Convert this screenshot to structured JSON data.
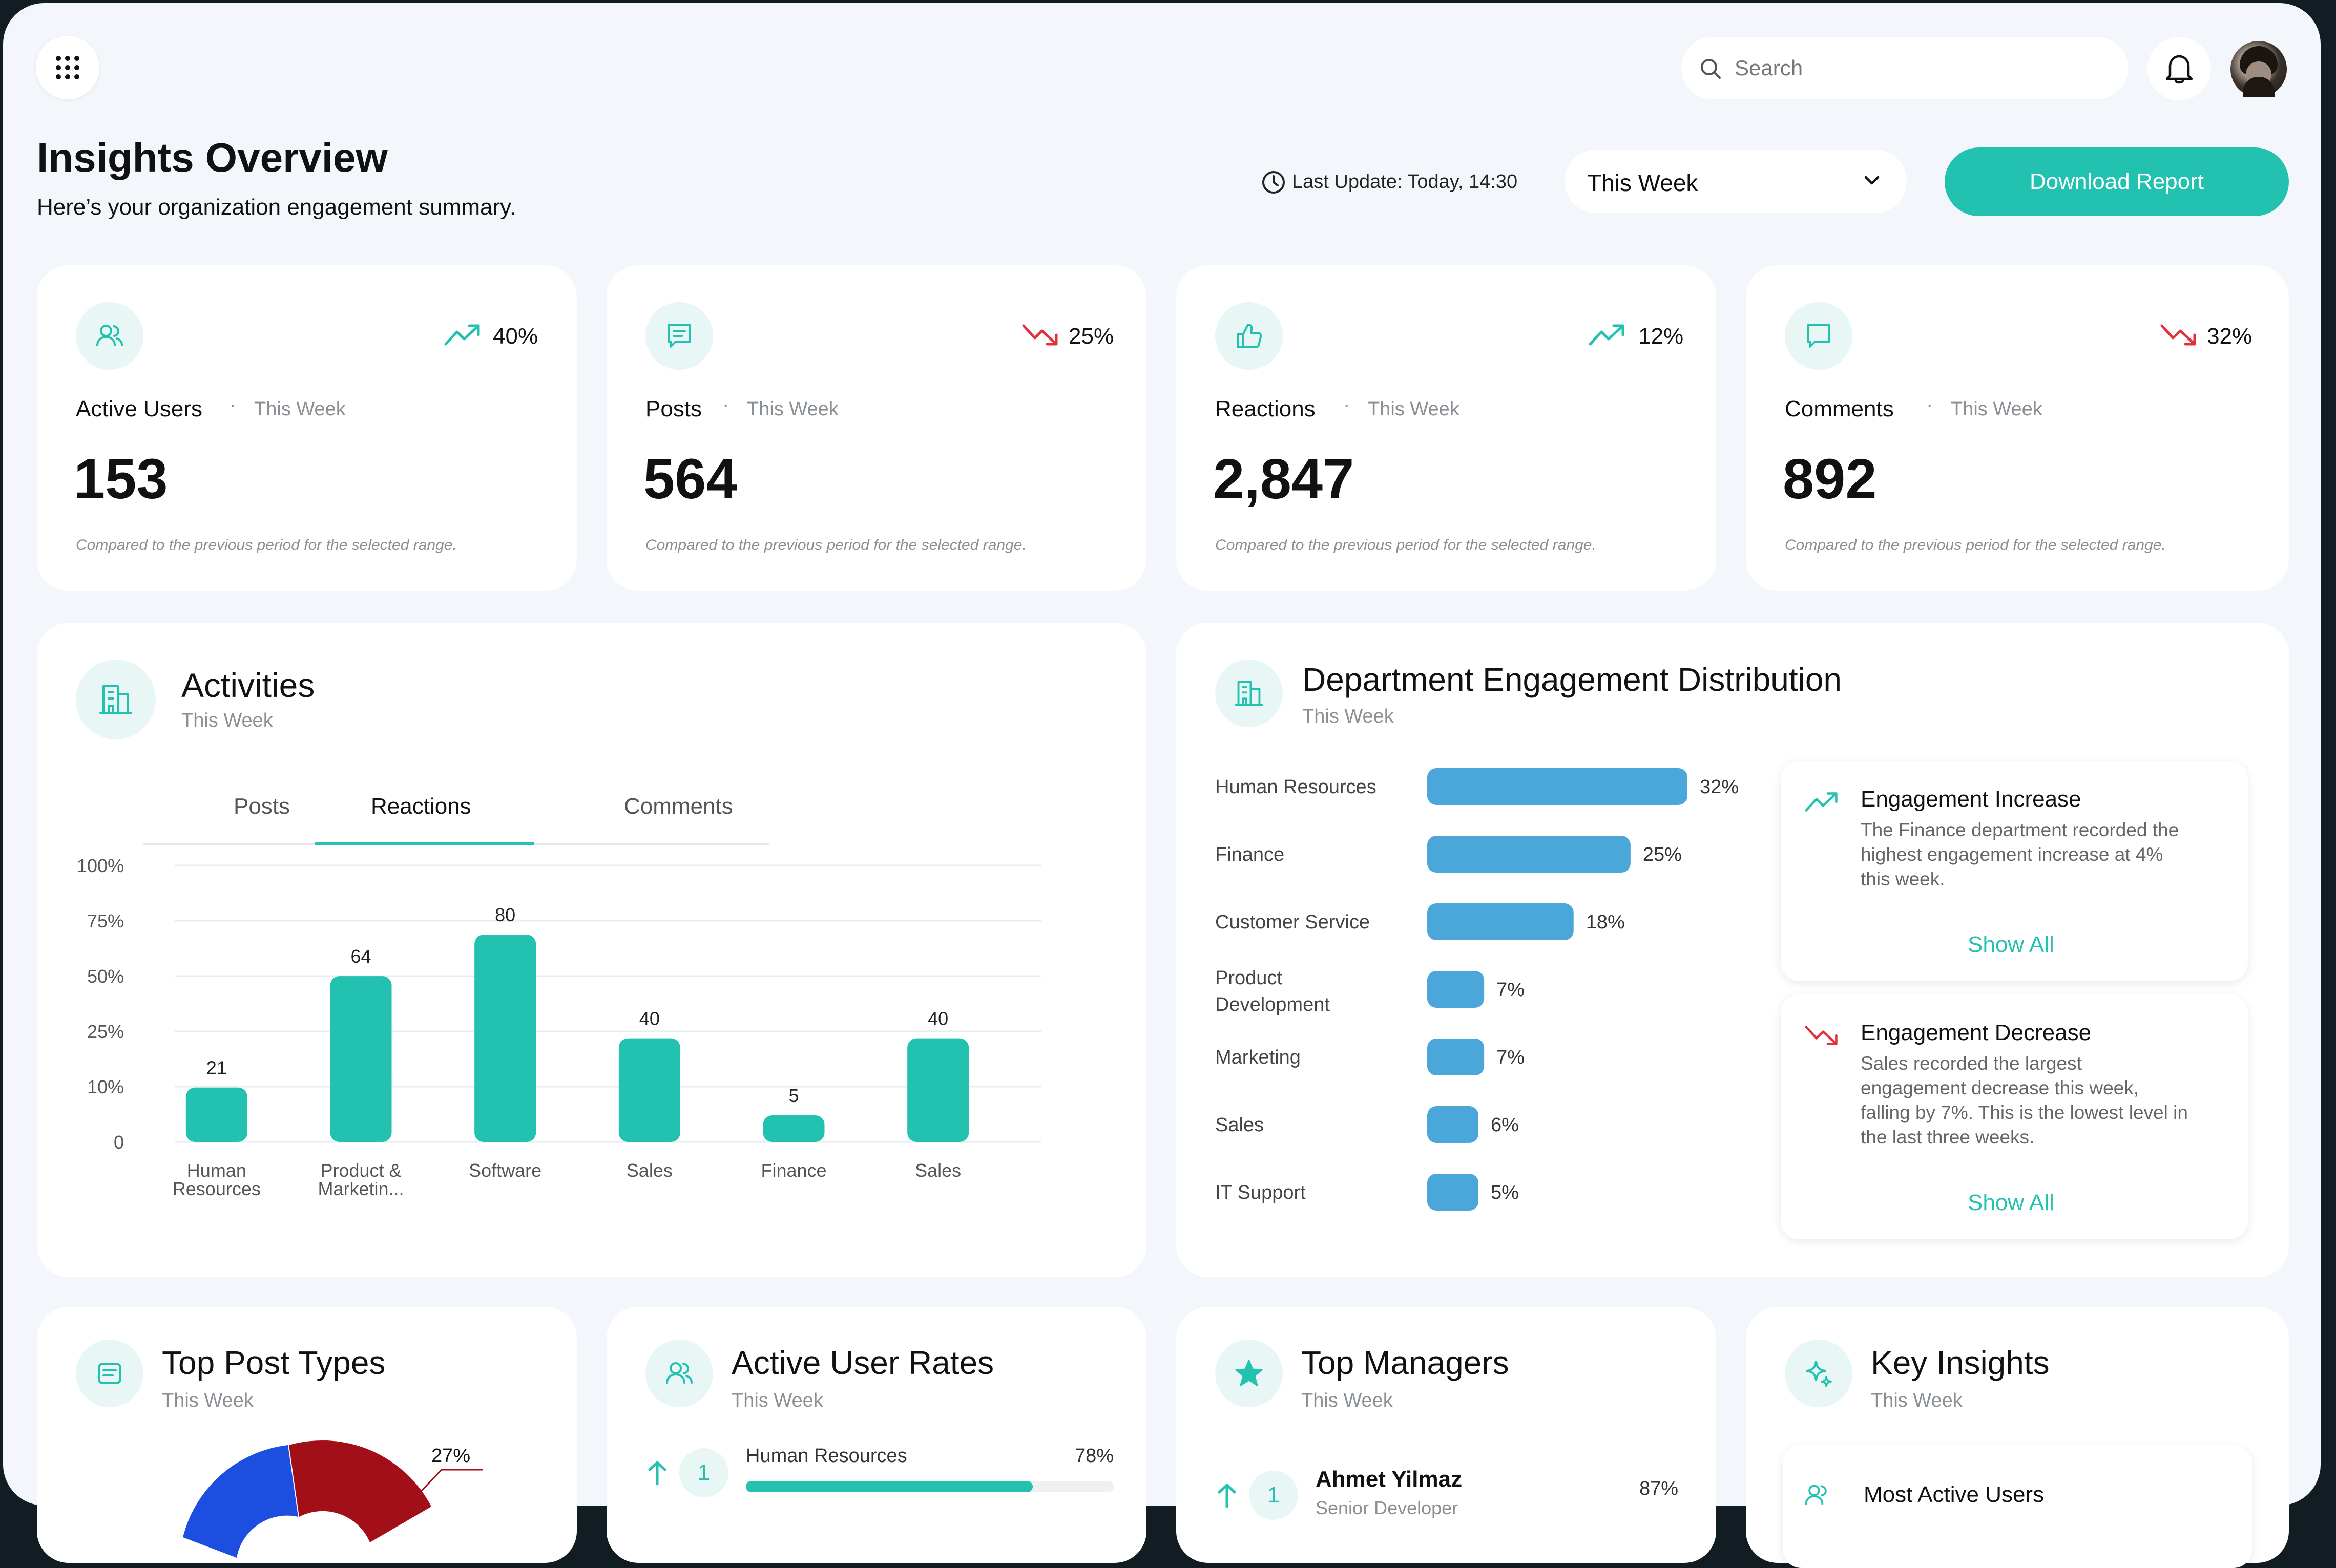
{
  "header": {
    "search_placeholder": "Search",
    "title": "Insights Overview",
    "subtitle": "Here’s your organization engagement summary.",
    "last_update": "Last Update: Today, 14:30",
    "range_select": "This Week",
    "download_label": "Download Report"
  },
  "stats": [
    {
      "label": "Active Users",
      "period": "This Week",
      "value": "153",
      "change": "40%",
      "trend": "up",
      "icon": "users-icon",
      "note": "Compared to the previous period for the selected range."
    },
    {
      "label": "Posts",
      "period": "This Week",
      "value": "564",
      "change": "25%",
      "trend": "down",
      "icon": "message-lines-icon",
      "note": "Compared to the previous period for the selected range."
    },
    {
      "label": "Reactions",
      "period": "This Week",
      "value": "2,847",
      "change": "12%",
      "trend": "up",
      "icon": "thumbs-up-icon",
      "note": "Compared to the previous period for the selected range."
    },
    {
      "label": "Comments",
      "period": "This Week",
      "value": "892",
      "change": "32%",
      "trend": "down",
      "icon": "comment-icon",
      "note": "Compared to the previous period for the selected range."
    }
  ],
  "activities": {
    "title": "Activities",
    "period": "This Week",
    "tabs": [
      "Posts",
      "Reactions",
      "Comments"
    ],
    "active_tab": "Reactions"
  },
  "chart_data": {
    "type": "bar",
    "y_ticks": [
      "100%",
      "75%",
      "50%",
      "25%",
      "10%",
      "0"
    ],
    "categories": [
      [
        "Human",
        "Resources"
      ],
      [
        "Product &",
        "Marketin..."
      ],
      [
        "Software"
      ],
      [
        "Sales"
      ],
      [
        "Finance"
      ],
      [
        "Sales"
      ]
    ],
    "values": [
      21,
      64,
      80,
      40,
      5,
      40
    ],
    "value_labels": [
      "21",
      "64",
      "80",
      "40",
      "5",
      "40"
    ],
    "ylim": [
      0,
      100
    ],
    "grid": true
  },
  "departments": {
    "title": "Department Engagement Distribution",
    "period": "This Week",
    "rows": [
      {
        "name": [
          "Human Resources"
        ],
        "value": 32,
        "label": "32%"
      },
      {
        "name": [
          "Finance"
        ],
        "value": 25,
        "label": "25%"
      },
      {
        "name": [
          "Customer Service"
        ],
        "value": 18,
        "label": "18%"
      },
      {
        "name": [
          "Product",
          "Development"
        ],
        "value": 7,
        "label": "7%"
      },
      {
        "name": [
          "Marketing"
        ],
        "value": 7,
        "label": "7%"
      },
      {
        "name": [
          "Sales"
        ],
        "value": 6,
        "label": "6%"
      },
      {
        "name": [
          "IT Support"
        ],
        "value": 5,
        "label": "5%"
      }
    ],
    "increase": {
      "title": "Engagement Increase",
      "lines": [
        "The Finance department recorded the",
        "highest engagement increase at 4%",
        "this week."
      ],
      "show_all": "Show All"
    },
    "decrease": {
      "title": "Engagement Decrease",
      "lines": [
        "Sales recorded the largest",
        "engagement decrease this week,",
        "falling by 7%. This is the lowest level in",
        "the last three weeks."
      ],
      "show_all": "Show All"
    }
  },
  "bottom": {
    "post_types": {
      "title": "Top Post Types",
      "period": "This Week",
      "slice_label": "27%"
    },
    "user_rates": {
      "title": "Active User Rates",
      "period": "This Week",
      "rank": "1",
      "dept": "Human Resources",
      "value": "78%",
      "fraction": 0.78
    },
    "managers": {
      "title": "Top Managers",
      "period": "This Week",
      "rank": "1",
      "name": "Ahmet Yilmaz",
      "role": "Senior Developer",
      "value": "87%"
    },
    "insights": {
      "title": "Key Insights",
      "period": "This Week",
      "item": "Most Active Users"
    }
  },
  "colors": {
    "teal": "#23c1b0",
    "blue": "#4ba7d9",
    "red": "#e0323c",
    "dark_red": "#a20f19",
    "royal_blue": "#1c4fe0"
  }
}
